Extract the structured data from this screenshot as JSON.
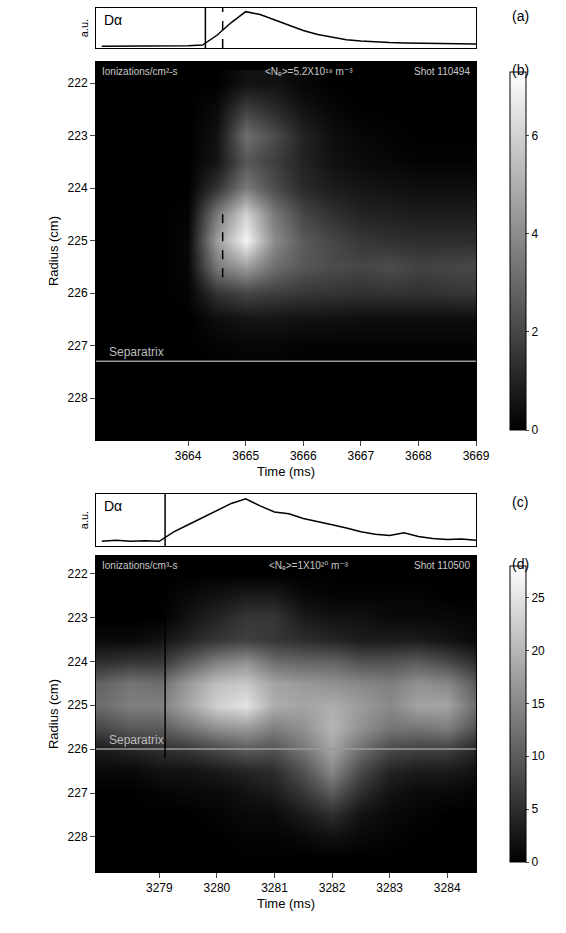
{
  "chart_data": [
    {
      "type": "line",
      "panel_label": "(a)",
      "title": "Dα",
      "ylabel": "a.u.",
      "color": "#000000",
      "tick_labels": false,
      "x": [
        3662.5,
        3662.75,
        3663,
        3663.25,
        3663.5,
        3663.75,
        3664,
        3664.25,
        3664.5,
        3664.75,
        3665,
        3665.25,
        3665.5,
        3665.75,
        3666,
        3666.25,
        3666.5,
        3666.75,
        3667,
        3667.25,
        3667.5,
        3667.75,
        3668,
        3668.25,
        3668.5,
        3668.75,
        3669
      ],
      "values": [
        0.05,
        0.05,
        0.05,
        0.05,
        0.05,
        0.05,
        0.06,
        0.08,
        0.35,
        0.7,
        1.0,
        0.92,
        0.78,
        0.62,
        0.48,
        0.37,
        0.29,
        0.23,
        0.19,
        0.16,
        0.15,
        0.14,
        0.13,
        0.12,
        0.12,
        0.11,
        0.11
      ],
      "xlim": [
        3662.4,
        3669
      ],
      "ylim": [
        0,
        1.1
      ],
      "vlines": [
        {
          "x": 3664.3,
          "line_style": "solid"
        },
        {
          "x": 3664.6,
          "line_style": "dashed"
        }
      ]
    },
    {
      "type": "heatmap",
      "panel_label": "(b)",
      "title": "Ionizations/cm²-s",
      "density_label": "<Nₑ>=5.2X10¹⁹ m⁻³",
      "shot_label": "Shot 110494",
      "xlabel": "Time (ms)",
      "ylabel": "Radius (cm)",
      "x": [
        3662.5,
        3663,
        3663.5,
        3664,
        3664.5,
        3665,
        3665.5,
        3666,
        3666.5,
        3667,
        3667.5,
        3668,
        3668.5,
        3669
      ],
      "y": [
        222,
        222.5,
        223,
        223.5,
        224,
        224.5,
        225,
        225.5,
        226,
        226.5,
        227,
        227.5,
        228,
        228.5
      ],
      "z": [
        [
          0,
          0,
          0,
          0,
          0,
          0.5,
          0.5,
          0.2,
          0,
          0,
          0,
          0,
          0,
          0
        ],
        [
          0,
          0,
          0,
          0,
          0.3,
          1.8,
          1.2,
          0.5,
          0.2,
          0,
          0,
          0,
          0,
          0
        ],
        [
          0,
          0,
          0,
          0,
          0.5,
          3.2,
          2.2,
          1.0,
          0.4,
          0.2,
          0.1,
          0,
          0,
          0
        ],
        [
          0,
          0,
          0,
          0,
          0.6,
          2.5,
          1.8,
          1.0,
          0.5,
          0.3,
          0.2,
          0.1,
          0.1,
          0.1
        ],
        [
          0,
          0,
          0,
          0,
          1.5,
          3.5,
          2.2,
          1.2,
          0.8,
          0.6,
          0.5,
          0.4,
          0.4,
          0.4
        ],
        [
          0,
          0,
          0,
          0.1,
          3.5,
          6.0,
          3.5,
          2.0,
          1.4,
          1.0,
          0.9,
          0.8,
          0.8,
          0.8
        ],
        [
          0,
          0,
          0,
          0.2,
          4.5,
          7.0,
          4.0,
          2.6,
          2.0,
          1.6,
          1.4,
          1.3,
          1.3,
          1.3
        ],
        [
          0,
          0,
          0,
          0.2,
          3.5,
          4.5,
          3.2,
          2.5,
          2.2,
          2.0,
          2.2,
          1.9,
          2.0,
          2.1
        ],
        [
          0,
          0,
          0,
          0.1,
          1.5,
          2.0,
          1.8,
          1.6,
          1.5,
          1.4,
          1.5,
          1.4,
          1.5,
          1.6
        ],
        [
          0,
          0,
          0,
          0,
          0.4,
          0.6,
          0.6,
          0.5,
          0.5,
          0.4,
          0.4,
          0.4,
          0.4,
          0.4
        ],
        [
          0,
          0,
          0,
          0,
          0.1,
          0.2,
          0.2,
          0.1,
          0.1,
          0.1,
          0.1,
          0.1,
          0.1,
          0.1
        ],
        [
          0,
          0,
          0,
          0,
          0,
          0,
          0,
          0,
          0,
          0,
          0,
          0,
          0,
          0
        ],
        [
          0,
          0,
          0,
          0,
          0,
          0,
          0,
          0,
          0,
          0,
          0,
          0,
          0,
          0
        ],
        [
          0,
          0,
          0,
          0,
          0,
          0,
          0,
          0,
          0,
          0,
          0,
          0,
          0,
          0
        ]
      ],
      "zlim": [
        0,
        7.3
      ],
      "zticks": [
        0,
        2,
        4,
        6
      ],
      "xlim": [
        3662.4,
        3669
      ],
      "xticks": [
        3664,
        3665,
        3666,
        3667,
        3668,
        3669
      ],
      "ylim": [
        228.8,
        221.6
      ],
      "yticks": [
        222,
        223,
        224,
        225,
        226,
        227,
        228
      ],
      "separatrix": {
        "y": 227.3,
        "label": "Separatrix"
      },
      "vlines": [
        {
          "x": 3664.6,
          "line_style": "dashed",
          "y": [
            224.5,
            225.8
          ]
        }
      ]
    },
    {
      "type": "line",
      "panel_label": "(c)",
      "title": "Dα",
      "ylabel": "a.u.",
      "color": "#000000",
      "tick_labels": false,
      "x": [
        3278,
        3278.25,
        3278.5,
        3278.75,
        3279,
        3279.25,
        3279.5,
        3279.75,
        3280,
        3280.25,
        3280.5,
        3280.75,
        3281,
        3281.25,
        3281.5,
        3281.75,
        3282,
        3282.25,
        3282.5,
        3282.75,
        3283,
        3283.25,
        3283.5,
        3283.75,
        3284,
        3284.25,
        3284.5
      ],
      "values": [
        0.1,
        0.12,
        0.1,
        0.11,
        0.1,
        0.3,
        0.45,
        0.6,
        0.75,
        0.9,
        1.0,
        0.85,
        0.72,
        0.68,
        0.58,
        0.52,
        0.45,
        0.38,
        0.3,
        0.25,
        0.22,
        0.28,
        0.2,
        0.16,
        0.14,
        0.15,
        0.12
      ],
      "xlim": [
        3277.9,
        3284.5
      ],
      "ylim": [
        0,
        1.1
      ],
      "vlines": [
        {
          "x": 3279.1,
          "line_style": "solid"
        }
      ]
    },
    {
      "type": "heatmap",
      "panel_label": "(d)",
      "title": "Ionizations/cm³-s",
      "density_label": "<Nₑ>=1X10²⁰ m⁻³",
      "shot_label": "Shot 110500",
      "xlabel": "Time (ms)",
      "ylabel": "Radius (cm)",
      "x": [
        3278,
        3278.5,
        3279,
        3279.5,
        3280,
        3280.5,
        3281,
        3281.5,
        3282,
        3282.5,
        3283,
        3283.5,
        3284,
        3284.5
      ],
      "y": [
        222,
        222.5,
        223,
        223.5,
        224,
        224.5,
        225,
        225.5,
        226,
        226.5,
        227,
        227.5,
        228,
        228.5
      ],
      "z": [
        [
          0,
          0,
          0,
          0,
          0,
          0,
          0,
          0,
          0,
          0,
          0,
          0,
          0,
          0
        ],
        [
          0,
          0,
          0,
          1,
          2,
          3,
          3,
          1,
          0.5,
          0.5,
          0.5,
          0.5,
          0,
          0
        ],
        [
          0,
          0,
          0,
          2,
          4,
          6,
          6,
          3,
          2,
          2,
          1,
          1,
          1,
          0.5
        ],
        [
          1,
          1,
          2,
          4,
          6,
          7,
          6,
          5,
          4,
          3,
          3,
          3,
          2,
          1
        ],
        [
          5,
          6,
          6,
          10,
          14,
          16,
          12,
          11,
          11,
          9,
          9,
          10,
          8,
          5
        ],
        [
          11,
          13,
          12,
          17,
          21,
          22,
          18,
          17,
          16,
          15,
          14,
          16,
          15,
          10
        ],
        [
          12,
          14,
          14,
          18,
          23,
          25,
          19,
          18,
          19,
          17,
          15,
          18,
          18,
          12
        ],
        [
          8,
          10,
          10,
          13,
          16,
          17,
          14,
          16,
          20,
          16,
          13,
          13,
          14,
          9
        ],
        [
          3,
          4,
          5,
          6,
          8,
          10,
          9,
          13,
          18,
          12,
          8,
          7,
          7,
          4
        ],
        [
          1,
          1,
          2,
          2,
          3,
          4,
          5,
          9,
          15,
          8,
          4,
          3,
          3,
          2
        ],
        [
          0,
          0,
          0.5,
          1,
          1,
          2,
          3,
          6,
          10,
          5,
          2,
          1,
          1,
          0.5
        ],
        [
          0,
          0,
          0,
          0,
          0.5,
          1,
          1,
          3,
          5,
          2,
          1,
          0.5,
          0,
          0
        ],
        [
          0,
          0,
          0,
          0,
          0,
          0.5,
          0.5,
          1,
          2,
          1,
          0.5,
          0,
          0,
          0
        ],
        [
          0,
          0,
          0,
          0,
          0,
          0,
          0,
          0,
          0,
          0,
          0,
          0,
          0,
          0
        ]
      ],
      "zlim": [
        0,
        28
      ],
      "zticks": [
        0,
        5,
        10,
        15,
        20,
        25
      ],
      "xlim": [
        3277.9,
        3284.5
      ],
      "xticks": [
        3279,
        3280,
        3281,
        3282,
        3283,
        3284
      ],
      "ylim": [
        228.8,
        221.6
      ],
      "yticks": [
        222,
        223,
        224,
        225,
        226,
        227,
        228
      ],
      "separatrix": {
        "y": 226.0,
        "label": "Separatrix"
      },
      "vlines": [
        {
          "x": 3279.1,
          "line_style": "solid",
          "y": [
            222,
            226.2
          ]
        }
      ]
    }
  ]
}
